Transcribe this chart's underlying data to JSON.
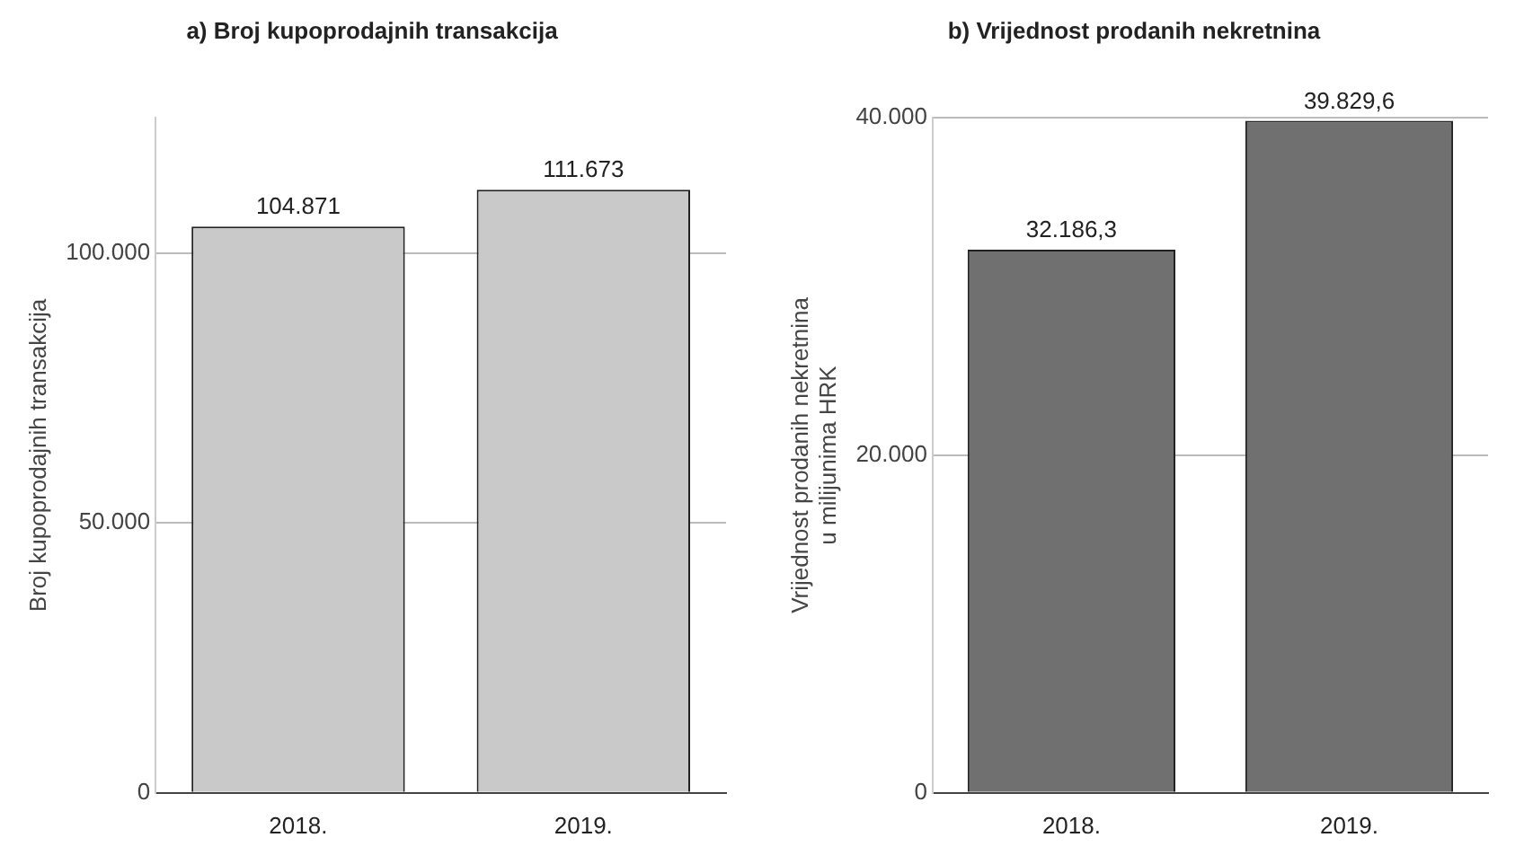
{
  "chart_data": [
    {
      "type": "bar",
      "title": "a) Broj kupoprodajnih transakcija",
      "ylabel": "Broj kupoprodajnih transakcija",
      "categories": [
        "2018.",
        "2019."
      ],
      "values": [
        104871,
        111673
      ],
      "value_labels": [
        "104.871",
        "111.673"
      ],
      "color": "#c9c9c9",
      "ylim": [
        0,
        125000
      ],
      "yticks": [
        0,
        {
          "value": 50000,
          "label": "50.000"
        },
        {
          "value": 100000,
          "label": "100.000"
        }
      ],
      "grid": "y",
      "legend": false
    },
    {
      "type": "bar",
      "title": "b) Vrijednost prodanih nekretnina",
      "ylabel": "Vrijednost prodanih nekretnina\nu milijunima HRK",
      "categories": [
        "2018.",
        "2019."
      ],
      "values": [
        32186.3,
        39829.6
      ],
      "value_labels": [
        "32.186,3",
        "39.829,6"
      ],
      "color": "#707070",
      "ylim": [
        0,
        40000
      ],
      "yticks": [
        0,
        {
          "value": 20000,
          "label": "20.000"
        },
        {
          "value": 40000,
          "label": "40.000"
        }
      ],
      "grid": "y",
      "legend": false
    }
  ]
}
